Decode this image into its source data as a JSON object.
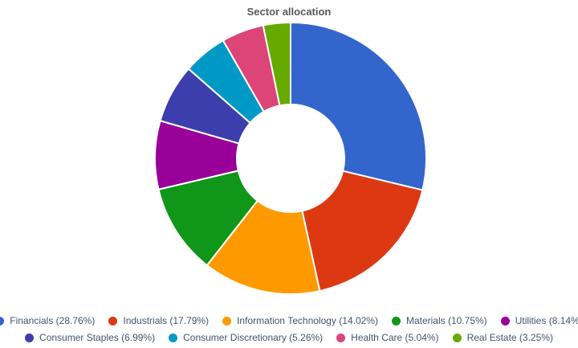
{
  "chart_data": {
    "type": "pie",
    "subtype": "donut",
    "title": "Sector allocation",
    "labels": [
      "Financials",
      "Industrials",
      "Information Technology",
      "Materials",
      "Utilities",
      "Consumer Staples",
      "Consumer Discretionary",
      "Health Care",
      "Real Estate"
    ],
    "values": [
      28.76,
      17.79,
      14.02,
      10.75,
      8.14,
      6.99,
      5.26,
      5.04,
      3.25
    ],
    "colors": [
      "#3366CC",
      "#DC3912",
      "#FF9900",
      "#109618",
      "#990099",
      "#3B3EAC",
      "#0099C6",
      "#DD4477",
      "#66AA00"
    ],
    "unit": "%",
    "start_angle": "top-clockwise",
    "slice_border_color": "#FFFFFF",
    "legend_position": "bottom",
    "legend_label_format": "{label} ({value}%)",
    "title_color": "#595959",
    "legend_text_color": "#44546A"
  }
}
